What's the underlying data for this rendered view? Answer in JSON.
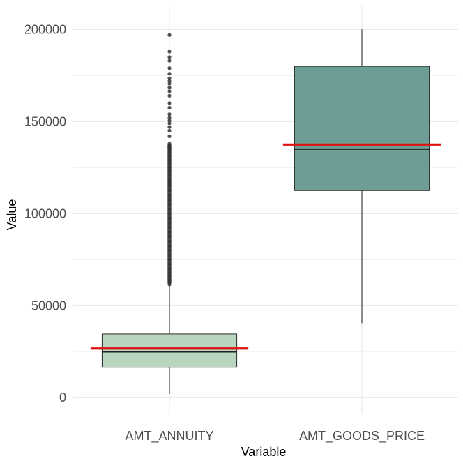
{
  "chart_data": {
    "type": "boxplot",
    "xlabel": "Variable",
    "ylabel": "Value",
    "ylim": [
      -9000,
      213000
    ],
    "yticks": [
      0,
      50000,
      100000,
      150000,
      200000
    ],
    "grid": true,
    "categories": [
      "AMT_ANNUITY",
      "AMT_GOODS_PRICE"
    ],
    "boxes": [
      {
        "name": "AMT_ANNUITY",
        "fill": "#b8d5be",
        "min": 2000,
        "q1": 16500,
        "median": 24900,
        "q3": 34600,
        "whisker_high": 61500,
        "mean": 26700,
        "outliers": [
          61500,
          62500,
          64000,
          66000,
          68000,
          70000,
          72500,
          75000,
          77500,
          80000,
          82500,
          85000,
          87500,
          90000,
          92500,
          95000,
          97500,
          100000,
          102500,
          105000,
          107500,
          110000,
          112500,
          115000,
          116500,
          117500,
          119000,
          121000,
          123000,
          125000,
          127000,
          129000,
          131000,
          133000,
          135000,
          136000,
          137000,
          138000,
          142000,
          145000,
          147000,
          149000,
          150500,
          152000,
          154000,
          157500,
          160000,
          164000,
          166500,
          168500,
          170500,
          172000,
          173500,
          176000,
          179000,
          183000,
          185000,
          188000,
          197000
        ]
      },
      {
        "name": "AMT_GOODS_PRICE",
        "fill": "#6d9e96",
        "min": 40500,
        "q1": 112500,
        "median": 135000,
        "q3": 180000,
        "whisker_high": 200000,
        "mean": 137500,
        "outliers": []
      }
    ],
    "mean_line_color": "#dd1111"
  }
}
